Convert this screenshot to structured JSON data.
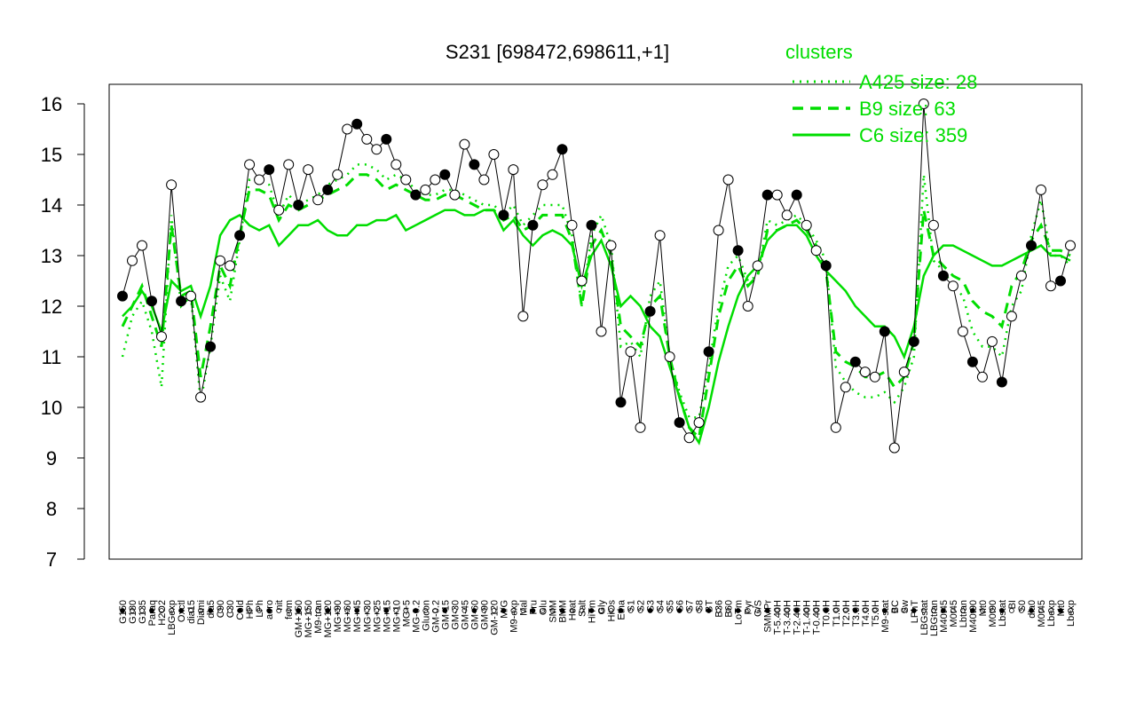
{
  "chart_data": {
    "type": "line",
    "title": "S231 [698472,698611,+1]",
    "ylim": [
      7,
      16
    ],
    "yticks": [
      7,
      8,
      9,
      10,
      11,
      12,
      13,
      14,
      15,
      16
    ],
    "grid": false,
    "legend_placement": "top-right",
    "legend_title": "clusters",
    "colors": {
      "accent": "#00dd00",
      "axis": "#000000"
    },
    "x_tick_labels": [
      "G150",
      "G180",
      "G135",
      "Paraq",
      "H2O2",
      "LBGexp",
      "Oxctl",
      "dia15",
      "Diami",
      "dia5",
      "C90",
      "C30",
      "Cold",
      "HPh",
      "LPh",
      "aero",
      "nit",
      "ferm",
      "GM+150",
      "MG+150",
      "M9-tran",
      "MG+120",
      "MG+90",
      "MG+60",
      "MG+45",
      "MG+30",
      "MG+25",
      "MG+15",
      "MG+10",
      "MG+5",
      "MG-0.2",
      "Glucon",
      "GM-0.2",
      "GM-15",
      "GM-30",
      "GM-45",
      "GM-60",
      "GM-90",
      "GM-120",
      "M/G",
      "M9-exp",
      "Mal",
      "Fru",
      "Glu",
      "SMM",
      "BMM",
      "Heat",
      "Salt",
      "HiTm",
      "Gly",
      "HiOs",
      "Etha",
      "S1",
      "S2",
      "S3",
      "S4",
      "S5",
      "S6",
      "S7",
      "S8",
      "BT",
      "B36",
      "B60",
      "LoTm",
      "Pyr",
      "G/S",
      "SMMPr",
      "T-5.40H",
      "T-3.40H",
      "T-2.40H",
      "T-1.40H",
      "T-0.40H",
      "T0.0H",
      "T1.0H",
      "T2.0H",
      "T3.0H",
      "T4.0H",
      "T5.0H",
      "M9-stat",
      "BC",
      "Sw",
      "LPhT",
      "LBGstat",
      "LBGtran",
      "M40t45",
      "M0t45",
      "Lbtran",
      "M40t90",
      "Mt0",
      "M0t90",
      "Lbstat",
      "BI",
      "S0",
      "dia0",
      "M0t45",
      "Lbexp",
      "Mt0",
      "Lbexp"
    ],
    "series": [
      {
        "name": "A425 size: 28",
        "style": "dotted",
        "values": [
          11.0,
          11.8,
          12.1,
          11.5,
          10.4,
          13.8,
          12.0,
          12.2,
          10.1,
          11.2,
          12.6,
          12.1,
          13.3,
          14.5,
          14.5,
          14.4,
          13.8,
          14.2,
          14.0,
          14.1,
          14.2,
          14.4,
          14.5,
          14.6,
          14.8,
          14.8,
          14.7,
          14.5,
          14.6,
          14.5,
          14.3,
          14.2,
          14.2,
          14.3,
          14.3,
          14.2,
          14.1,
          14.0,
          14.0,
          13.8,
          14.0,
          13.6,
          13.8,
          14.0,
          14.0,
          14.0,
          13.4,
          12.0,
          13.4,
          13.8,
          13.2,
          11.2,
          11.3,
          11.0,
          12.2,
          12.5,
          11.0,
          10.3,
          9.8,
          9.8,
          10.8,
          12.0,
          12.8,
          13.0,
          12.5,
          12.6,
          13.7,
          13.6,
          13.7,
          13.8,
          13.6,
          13.3,
          12.9,
          10.8,
          10.5,
          10.3,
          10.2,
          10.2,
          10.3,
          10.1,
          10.4,
          11.0,
          14.6,
          12.9,
          12.7,
          12.4,
          12.2,
          11.5,
          11.2,
          11.2,
          11.0,
          12.0,
          12.3,
          13.4,
          14.1,
          13.0,
          13.0,
          12.8
        ]
      },
      {
        "name": "B9 size: 63",
        "style": "dashed",
        "values": [
          11.6,
          12.0,
          12.4,
          11.8,
          11.2,
          13.6,
          12.2,
          12.3,
          10.6,
          11.6,
          12.8,
          12.4,
          13.4,
          14.3,
          14.3,
          14.2,
          13.7,
          14.0,
          13.9,
          14.0,
          14.1,
          14.2,
          14.3,
          14.4,
          14.6,
          14.6,
          14.5,
          14.3,
          14.4,
          14.3,
          14.2,
          14.1,
          14.1,
          14.2,
          14.2,
          14.1,
          14.0,
          13.9,
          13.9,
          13.7,
          13.8,
          13.5,
          13.6,
          13.8,
          13.8,
          13.8,
          13.3,
          12.0,
          13.2,
          13.5,
          13.0,
          11.6,
          11.4,
          11.2,
          12.0,
          12.2,
          11.0,
          10.2,
          9.6,
          9.4,
          10.6,
          11.8,
          12.5,
          12.8,
          12.4,
          12.6,
          13.5,
          13.5,
          13.6,
          13.7,
          13.5,
          13.2,
          12.7,
          11.1,
          10.9,
          10.8,
          10.6,
          10.6,
          10.7,
          10.4,
          10.6,
          11.3,
          13.9,
          13.0,
          12.8,
          12.6,
          12.5,
          12.1,
          11.9,
          11.8,
          11.6,
          12.4,
          12.7,
          13.3,
          13.6,
          13.1,
          13.1,
          13.0
        ]
      },
      {
        "name": "C6 size: 359",
        "style": "solid",
        "values": [
          11.8,
          12.0,
          12.3,
          12.0,
          11.5,
          12.5,
          12.3,
          12.4,
          11.8,
          12.4,
          13.4,
          13.7,
          13.8,
          13.6,
          13.5,
          13.6,
          13.2,
          13.4,
          13.6,
          13.6,
          13.7,
          13.5,
          13.4,
          13.4,
          13.6,
          13.6,
          13.7,
          13.7,
          13.8,
          13.5,
          13.6,
          13.7,
          13.8,
          13.9,
          13.9,
          13.8,
          13.8,
          13.9,
          13.9,
          13.5,
          13.7,
          13.4,
          13.2,
          13.4,
          13.5,
          13.4,
          13.2,
          12.4,
          13.0,
          13.3,
          12.8,
          12.0,
          12.2,
          12.0,
          11.6,
          11.4,
          10.8,
          10.2,
          9.6,
          9.3,
          10.0,
          10.9,
          11.6,
          12.2,
          12.6,
          12.8,
          13.3,
          13.5,
          13.6,
          13.6,
          13.4,
          13.0,
          12.7,
          12.5,
          12.3,
          12.0,
          11.8,
          11.6,
          11.6,
          11.4,
          11.0,
          11.6,
          12.6,
          13.0,
          13.2,
          13.2,
          13.1,
          13.0,
          12.9,
          12.8,
          12.8,
          12.9,
          13.0,
          13.1,
          13.2,
          13.0,
          13.0,
          12.9
        ]
      }
    ],
    "points": [
      {
        "x": "G150",
        "y": 12.2
      },
      {
        "x": "G180",
        "y": 12.9
      },
      {
        "x": "G135",
        "y": 13.2
      },
      {
        "x": "Paraq",
        "y": 12.1
      },
      {
        "x": "H2O2",
        "y": 11.4
      },
      {
        "x": "LBGexp",
        "y": 14.4
      },
      {
        "x": "Oxctl",
        "y": 12.1
      },
      {
        "x": "dia15",
        "y": 12.2
      },
      {
        "x": "Diami",
        "y": 10.2
      },
      {
        "x": "dia5",
        "y": 11.2
      },
      {
        "x": "C90",
        "y": 12.9
      },
      {
        "x": "C30",
        "y": 12.8
      },
      {
        "x": "Cold",
        "y": 13.4
      },
      {
        "x": "HPh",
        "y": 14.8
      },
      {
        "x": "LPh",
        "y": 14.5
      },
      {
        "x": "aero",
        "y": 14.7
      },
      {
        "x": "nit",
        "y": 13.9
      },
      {
        "x": "ferm",
        "y": 14.8
      },
      {
        "x": "GM+150",
        "y": 14.0
      },
      {
        "x": "MG+150",
        "y": 14.7
      },
      {
        "x": "M9-tran",
        "y": 14.1
      },
      {
        "x": "MG+120",
        "y": 14.3
      },
      {
        "x": "MG+90",
        "y": 14.6
      },
      {
        "x": "MG+60",
        "y": 15.5
      },
      {
        "x": "MG+45",
        "y": 15.6
      },
      {
        "x": "MG+30",
        "y": 15.3
      },
      {
        "x": "MG+25",
        "y": 15.1
      },
      {
        "x": "MG+15",
        "y": 15.3
      },
      {
        "x": "MG+10",
        "y": 14.8
      },
      {
        "x": "MG+5",
        "y": 14.5
      },
      {
        "x": "MG-0.2",
        "y": 14.2
      },
      {
        "x": "Glucon",
        "y": 14.3
      },
      {
        "x": "GM-0.2",
        "y": 14.5
      },
      {
        "x": "GM-15",
        "y": 14.6
      },
      {
        "x": "GM-30",
        "y": 14.2
      },
      {
        "x": "GM-45",
        "y": 15.2
      },
      {
        "x": "GM-60",
        "y": 14.8
      },
      {
        "x": "GM-90",
        "y": 14.5
      },
      {
        "x": "GM-120",
        "y": 15.0
      },
      {
        "x": "M/G",
        "y": 13.8
      },
      {
        "x": "M9-exp",
        "y": 14.7
      },
      {
        "x": "Mal",
        "y": 11.8
      },
      {
        "x": "Fru",
        "y": 13.6
      },
      {
        "x": "Glu",
        "y": 14.4
      },
      {
        "x": "SMM",
        "y": 14.6
      },
      {
        "x": "BMM",
        "y": 15.1
      },
      {
        "x": "Heat",
        "y": 13.6
      },
      {
        "x": "Salt",
        "y": 12.5
      },
      {
        "x": "HiTm",
        "y": 13.6
      },
      {
        "x": "Gly",
        "y": 11.5
      },
      {
        "x": "HiOs",
        "y": 13.2
      },
      {
        "x": "Etha",
        "y": 10.1
      },
      {
        "x": "S1",
        "y": 11.1
      },
      {
        "x": "S2",
        "y": 9.6
      },
      {
        "x": "S3",
        "y": 11.9
      },
      {
        "x": "S4",
        "y": 13.4
      },
      {
        "x": "S5",
        "y": 11.0
      },
      {
        "x": "S6",
        "y": 9.7
      },
      {
        "x": "S7",
        "y": 9.4
      },
      {
        "x": "S8",
        "y": 9.7
      },
      {
        "x": "BT",
        "y": 11.1
      },
      {
        "x": "B36",
        "y": 13.5
      },
      {
        "x": "B60",
        "y": 14.5
      },
      {
        "x": "LoTm",
        "y": 13.1
      },
      {
        "x": "Pyr",
        "y": 12.0
      },
      {
        "x": "G/S",
        "y": 12.8
      },
      {
        "x": "SMMPr",
        "y": 14.2
      },
      {
        "x": "T-5.40H",
        "y": 14.2
      },
      {
        "x": "T-3.40H",
        "y": 13.8
      },
      {
        "x": "T-2.40H",
        "y": 14.2
      },
      {
        "x": "T-1.40H",
        "y": 13.6
      },
      {
        "x": "T-0.40H",
        "y": 13.1
      },
      {
        "x": "T0.0H",
        "y": 12.8
      },
      {
        "x": "T1.0H",
        "y": 9.6
      },
      {
        "x": "T2.0H",
        "y": 10.4
      },
      {
        "x": "T3.0H",
        "y": 10.9
      },
      {
        "x": "T4.0H",
        "y": 10.7
      },
      {
        "x": "T5.0H",
        "y": 10.6
      },
      {
        "x": "M9-stat",
        "y": 11.5
      },
      {
        "x": "BC",
        "y": 9.2
      },
      {
        "x": "Sw",
        "y": 10.7
      },
      {
        "x": "LPhT",
        "y": 11.3
      },
      {
        "x": "LBGstat",
        "y": 16.0
      },
      {
        "x": "LBGtran",
        "y": 13.6
      },
      {
        "x": "M40t45",
        "y": 12.6
      },
      {
        "x": "M0t45",
        "y": 12.4
      },
      {
        "x": "Lbtran",
        "y": 11.5
      },
      {
        "x": "M40t90",
        "y": 10.9
      },
      {
        "x": "Mt0",
        "y": 10.6
      },
      {
        "x": "M0t90",
        "y": 11.3
      },
      {
        "x": "Lbstat",
        "y": 10.5
      },
      {
        "x": "BI",
        "y": 11.8
      },
      {
        "x": "S0",
        "y": 12.6
      },
      {
        "x": "dia0",
        "y": 13.2
      },
      {
        "x": "M0t45",
        "y": 14.3
      },
      {
        "x": "Lbexp",
        "y": 12.4
      },
      {
        "x": "Mt0",
        "y": 12.5
      },
      {
        "x": "Lbexp",
        "y": 13.2
      }
    ]
  }
}
